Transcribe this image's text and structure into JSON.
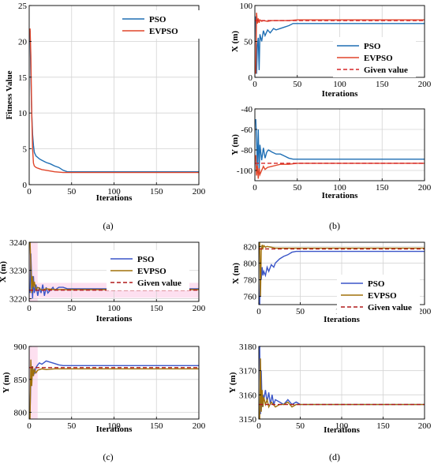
{
  "colors": {
    "pso_blue": "#1f6fb4",
    "evpso_red": "#e0452a",
    "given_red": "#d62728",
    "pso_blue2": "#3a55c8",
    "evpso_gold": "#a0700a",
    "given_darkred": "#b01a1a",
    "grid": "#d4d4d4",
    "highlight": "#fde0f0"
  },
  "captions": [
    "(a)",
    "(b)",
    "(c)",
    "(d)"
  ],
  "chart_data": [
    {
      "id": "a",
      "type": "line",
      "xlabel": "Iterations",
      "ylabel": "Fitness Value",
      "xlim": [
        0,
        200
      ],
      "ylim": [
        0,
        25
      ],
      "xticks": [
        0,
        50,
        100,
        150,
        200
      ],
      "yticks": [
        0,
        5,
        10,
        15,
        20,
        25
      ],
      "grid": true,
      "legend_position": "top-right",
      "series": [
        {
          "name": "PSO",
          "color_key": "pso_blue",
          "dash": false,
          "x": [
            1,
            2,
            3,
            4,
            5,
            6,
            8,
            10,
            12,
            15,
            20,
            25,
            30,
            35,
            40,
            45,
            50,
            100,
            150,
            200
          ],
          "y": [
            21.5,
            15,
            10,
            7,
            5.5,
            4.5,
            4.0,
            3.8,
            3.6,
            3.4,
            3.1,
            2.9,
            2.6,
            2.4,
            2.0,
            1.8,
            1.8,
            1.8,
            1.8,
            1.8
          ]
        },
        {
          "name": "EVPSO",
          "color_key": "evpso_red",
          "dash": false,
          "x": [
            1,
            2,
            3,
            4,
            5,
            6,
            8,
            10,
            15,
            20,
            30,
            40,
            50,
            100,
            150,
            200
          ],
          "y": [
            21.8,
            18,
            10,
            5,
            3.0,
            2.6,
            2.4,
            2.3,
            2.1,
            2.0,
            1.8,
            1.7,
            1.7,
            1.7,
            1.7,
            1.7
          ]
        }
      ]
    },
    {
      "id": "b-top",
      "type": "line",
      "xlabel": "Iterations",
      "ylabel": "X (m)",
      "xlim": [
        0,
        200
      ],
      "ylim": [
        0,
        100
      ],
      "xticks": [
        0,
        50,
        100,
        150,
        200
      ],
      "yticks": [
        0,
        50,
        100
      ],
      "grid": true,
      "legend_position": "middle-right",
      "series": [
        {
          "name": "PSO",
          "color_key": "pso_blue",
          "dash": false,
          "x": [
            1,
            2,
            3,
            4,
            5,
            6,
            8,
            10,
            12,
            15,
            18,
            20,
            22,
            25,
            30,
            35,
            40,
            45,
            50,
            100,
            150,
            200
          ],
          "y": [
            85,
            5,
            45,
            55,
            10,
            60,
            50,
            65,
            58,
            66,
            62,
            65,
            68,
            66,
            68,
            70,
            72,
            75,
            75,
            75,
            75,
            75
          ]
        },
        {
          "name": "EVPSO",
          "color_key": "evpso_red",
          "dash": false,
          "x": [
            1,
            2,
            3,
            4,
            5,
            6,
            8,
            10,
            15,
            20,
            30,
            40,
            50,
            100,
            150,
            200
          ],
          "y": [
            5,
            90,
            75,
            82,
            76,
            80,
            78,
            79,
            78,
            79,
            79,
            79,
            80,
            80,
            80,
            80
          ]
        },
        {
          "name": "Given value",
          "color_key": "given_red",
          "dash": true,
          "x": [
            0,
            200
          ],
          "y": [
            79,
            79
          ]
        }
      ]
    },
    {
      "id": "b-bottom",
      "type": "line",
      "xlabel": "Iterations",
      "ylabel": "Y (m)",
      "xlim": [
        0,
        200
      ],
      "ylim": [
        -110,
        -40
      ],
      "xticks": [
        0,
        50,
        100,
        150,
        200
      ],
      "yticks": [
        -100,
        -80,
        -60,
        -40
      ],
      "grid": true,
      "series": [
        {
          "name": "PSO",
          "color_key": "pso_blue",
          "dash": false,
          "x": [
            1,
            2,
            3,
            4,
            5,
            6,
            8,
            10,
            12,
            14,
            16,
            20,
            25,
            30,
            35,
            40,
            45,
            50,
            100,
            150,
            200
          ],
          "y": [
            -50,
            -70,
            -95,
            -60,
            -100,
            -75,
            -90,
            -78,
            -88,
            -82,
            -80,
            -82,
            -84,
            -84,
            -86,
            -88,
            -89,
            -89,
            -89,
            -89,
            -89
          ]
        },
        {
          "name": "EVPSO",
          "color_key": "evpso_red",
          "dash": false,
          "x": [
            1,
            2,
            3,
            4,
            5,
            6,
            8,
            10,
            12,
            15,
            20,
            25,
            30,
            40,
            50,
            100,
            150,
            200
          ],
          "y": [
            -85,
            -105,
            -95,
            -108,
            -98,
            -104,
            -100,
            -96,
            -99,
            -97,
            -96,
            -95,
            -94,
            -94,
            -93,
            -93,
            -93,
            -93
          ]
        },
        {
          "name": "Given value",
          "color_key": "given_red",
          "dash": true,
          "x": [
            0,
            200
          ],
          "y": [
            -93,
            -93
          ]
        }
      ]
    },
    {
      "id": "c-top",
      "type": "line",
      "xlabel": "Iterations",
      "ylabel": "X (m)",
      "xlim": [
        0,
        200
      ],
      "ylim": [
        3219,
        3240
      ],
      "xticks": [
        0,
        50,
        100,
        150,
        200
      ],
      "yticks": [
        3220,
        3230,
        3240
      ],
      "grid": true,
      "legend_position": "middle-right",
      "series": [
        {
          "name": "PSO",
          "color_key": "pso_blue2",
          "dash": false,
          "x": [
            1,
            2,
            3,
            4,
            5,
            6,
            8,
            10,
            12,
            14,
            16,
            18,
            20,
            22,
            25,
            28,
            30,
            35,
            40,
            45,
            50,
            100,
            150,
            200
          ],
          "y": [
            3222,
            3236,
            3226,
            3220,
            3228,
            3222,
            3225,
            3221,
            3224,
            3222,
            3225,
            3221,
            3224,
            3222,
            3223,
            3224,
            3223,
            3224,
            3224,
            3223.5,
            3223.5,
            3223.5,
            3223.5,
            3223.5
          ]
        },
        {
          "name": "EVPSO",
          "color_key": "evpso_gold",
          "dash": false,
          "x": [
            1,
            2,
            3,
            4,
            5,
            6,
            8,
            10,
            15,
            20,
            30,
            40,
            50,
            100,
            150,
            200
          ],
          "y": [
            3240,
            3232,
            3222,
            3228,
            3224,
            3226,
            3223,
            3224,
            3223,
            3223.5,
            3223.2,
            3223.2,
            3223.2,
            3223.2,
            3223.2,
            3223.2
          ]
        },
        {
          "name": "Given value",
          "color_key": "given_darkred",
          "dash": true,
          "x": [
            0,
            200
          ],
          "y": [
            3223,
            3223
          ]
        }
      ]
    },
    {
      "id": "c-bottom",
      "type": "line",
      "xlabel": "Iterations",
      "ylabel": "Y (m)",
      "xlim": [
        0,
        200
      ],
      "ylim": [
        790,
        900
      ],
      "xticks": [
        0,
        50,
        100,
        150,
        200
      ],
      "yticks": [
        800,
        850,
        900
      ],
      "grid": true,
      "series": [
        {
          "name": "PSO",
          "color_key": "pso_blue2",
          "dash": false,
          "x": [
            1,
            2,
            3,
            4,
            5,
            6,
            8,
            10,
            12,
            15,
            20,
            25,
            30,
            35,
            40,
            50,
            100,
            150,
            200
          ],
          "y": [
            800,
            850,
            870,
            855,
            865,
            858,
            868,
            872,
            875,
            873,
            878,
            876,
            874,
            872,
            871,
            871,
            871,
            871,
            871
          ]
        },
        {
          "name": "EVPSO",
          "color_key": "evpso_gold",
          "dash": false,
          "x": [
            1,
            2,
            3,
            4,
            5,
            6,
            8,
            10,
            15,
            20,
            30,
            40,
            50,
            100,
            150,
            200
          ],
          "y": [
            790,
            880,
            840,
            870,
            855,
            865,
            860,
            864,
            866,
            865,
            866,
            866,
            866,
            866,
            866,
            866
          ]
        },
        {
          "name": "Given value",
          "color_key": "given_darkred",
          "dash": true,
          "x": [
            0,
            200
          ],
          "y": [
            868,
            868
          ]
        }
      ]
    },
    {
      "id": "d-top",
      "type": "line",
      "xlabel": "Iterations",
      "ylabel": "X (m)",
      "xlim": [
        0,
        200
      ],
      "ylim": [
        750,
        825
      ],
      "xticks": [
        0,
        50,
        100,
        150,
        200
      ],
      "yticks": [
        760,
        780,
        800,
        820
      ],
      "grid": true,
      "legend_position": "lower-right",
      "series": [
        {
          "name": "PSO",
          "color_key": "pso_blue2",
          "dash": false,
          "x": [
            1,
            2,
            3,
            4,
            5,
            6,
            8,
            10,
            12,
            15,
            18,
            20,
            25,
            30,
            35,
            40,
            45,
            50,
            100,
            150,
            200
          ],
          "y": [
            750,
            800,
            780,
            795,
            785,
            790,
            785,
            795,
            790,
            798,
            795,
            800,
            805,
            808,
            810,
            813,
            814,
            814,
            814,
            814,
            814
          ]
        },
        {
          "name": "EVPSO",
          "color_key": "evpso_gold",
          "dash": false,
          "x": [
            1,
            2,
            3,
            4,
            5,
            6,
            8,
            10,
            15,
            20,
            30,
            40,
            50,
            100,
            150,
            200
          ],
          "y": [
            825,
            760,
            815,
            822,
            818,
            821,
            819,
            820,
            819,
            818,
            818,
            818,
            818,
            818,
            818,
            818
          ]
        },
        {
          "name": "Given value",
          "color_key": "given_darkred",
          "dash": true,
          "x": [
            0,
            200
          ],
          "y": [
            817,
            817
          ]
        }
      ]
    },
    {
      "id": "d-bottom",
      "type": "line",
      "xlabel": "Iterations",
      "ylabel": "Y (m)",
      "xlim": [
        0,
        200
      ],
      "ylim": [
        3150,
        3180
      ],
      "xticks": [
        0,
        50,
        100,
        150,
        200
      ],
      "yticks": [
        3150,
        3160,
        3170,
        3180
      ],
      "grid": true,
      "series": [
        {
          "name": "PSO",
          "color_key": "pso_blue2",
          "dash": false,
          "x": [
            1,
            2,
            3,
            4,
            5,
            6,
            8,
            10,
            12,
            14,
            16,
            18,
            20,
            25,
            30,
            35,
            40,
            45,
            50,
            100,
            150,
            200
          ],
          "y": [
            3180,
            3152,
            3170,
            3155,
            3160,
            3158,
            3162,
            3157,
            3161,
            3156,
            3160,
            3156,
            3158,
            3157,
            3156,
            3158,
            3156,
            3157,
            3156,
            3156,
            3156,
            3156
          ]
        },
        {
          "name": "EVPSO",
          "color_key": "evpso_gold",
          "dash": false,
          "x": [
            1,
            2,
            3,
            4,
            5,
            6,
            8,
            10,
            12,
            15,
            20,
            25,
            30,
            35,
            40,
            45,
            50,
            100,
            150,
            200
          ],
          "y": [
            3150,
            3175,
            3153,
            3162,
            3155,
            3159,
            3156,
            3158,
            3155,
            3157,
            3155,
            3156,
            3156,
            3157,
            3155,
            3156,
            3156,
            3156,
            3156,
            3156
          ]
        },
        {
          "name": "Given value",
          "color_key": "given_darkred",
          "dash": true,
          "x": [
            0,
            200
          ],
          "y": [
            3156,
            3156
          ]
        }
      ]
    }
  ]
}
